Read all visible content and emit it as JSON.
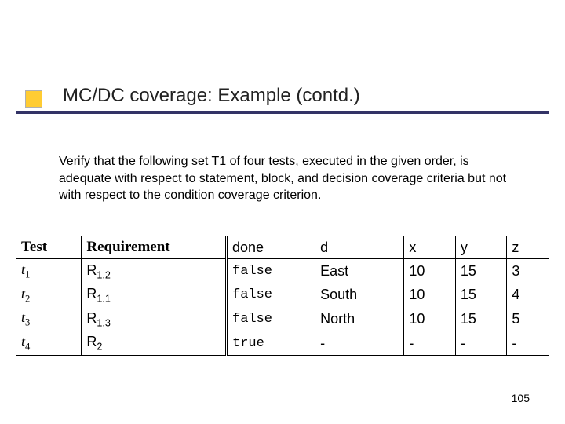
{
  "slide": {
    "title": "MC/DC coverage: Example (contd.)",
    "body": "Verify that the following set T1 of four tests, executed in the given order, is adequate with respect to statement, block, and decision coverage criteria but not with respect to the condition coverage criterion.",
    "page_number": "105",
    "accent_square_color": "#ffcc33",
    "title_line_color": "#333366"
  },
  "table": {
    "headers": {
      "test": "Test",
      "requirement": "Requirement",
      "done": "done",
      "d": "d",
      "x": "x",
      "y": "y",
      "z": "z"
    },
    "rows": [
      {
        "t_label": "t",
        "t_sub": "1",
        "req_label": "R",
        "req_sub": "1.2",
        "done": "false",
        "d": "East",
        "x": "10",
        "y": "15",
        "z": "3"
      },
      {
        "t_label": "t",
        "t_sub": "2",
        "req_label": "R",
        "req_sub": "1.1",
        "done": "false",
        "d": "South",
        "x": "10",
        "y": "15",
        "z": "4"
      },
      {
        "t_label": "t",
        "t_sub": "3",
        "req_label": "R",
        "req_sub": "1.3",
        "done": "false",
        "d": "North",
        "x": "10",
        "y": "15",
        "z": "5"
      },
      {
        "t_label": "t",
        "t_sub": "4",
        "req_label": "R",
        "req_sub": "2",
        "done": "true",
        "d": "-",
        "x": "-",
        "y": "-",
        "z": "-"
      }
    ]
  }
}
